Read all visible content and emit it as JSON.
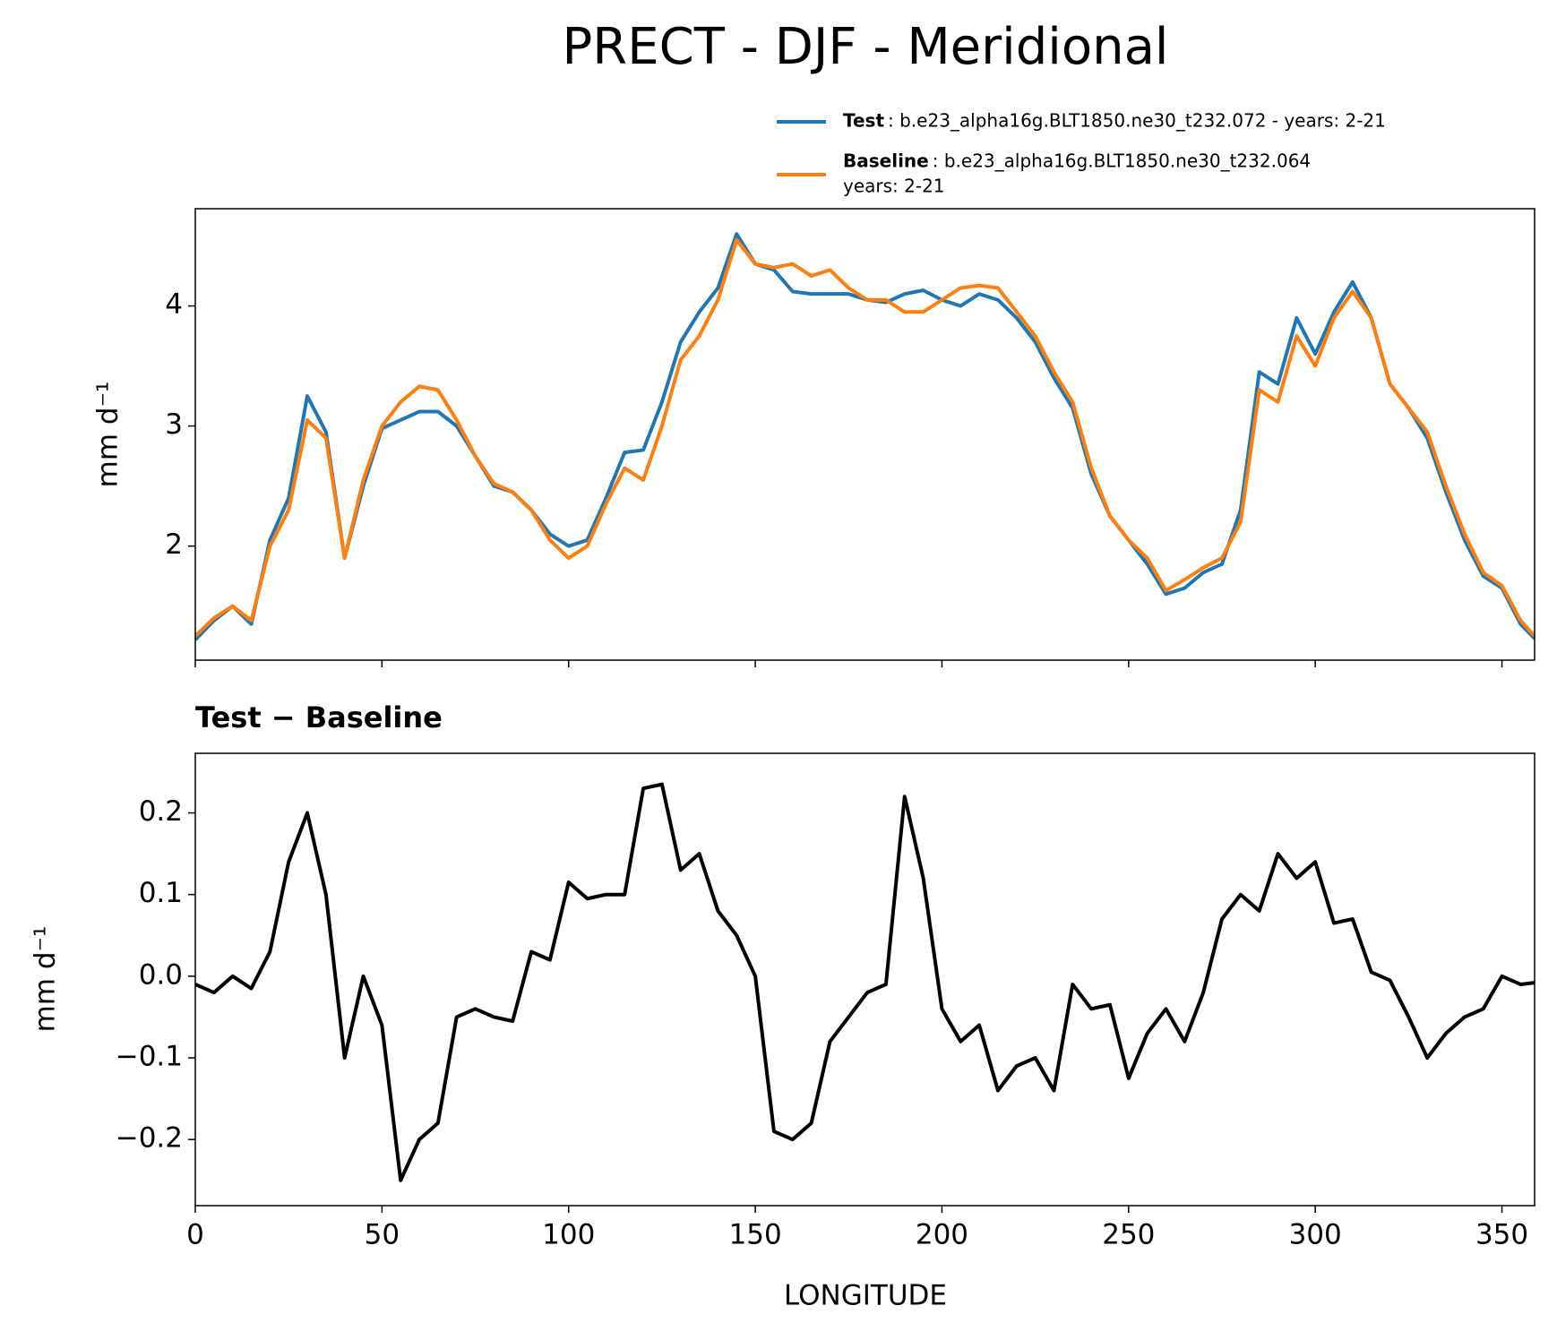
{
  "chart_data": [
    {
      "type": "line",
      "title": "PRECT - DJF - Meridional",
      "ylabel": "mm d⁻¹",
      "x": [
        0,
        5,
        10,
        15,
        20,
        25,
        30,
        35,
        40,
        45,
        50,
        55,
        60,
        65,
        70,
        75,
        80,
        85,
        90,
        95,
        100,
        105,
        110,
        115,
        120,
        125,
        130,
        135,
        140,
        145,
        150,
        155,
        160,
        165,
        170,
        175,
        180,
        185,
        190,
        195,
        200,
        205,
        210,
        215,
        220,
        225,
        230,
        235,
        240,
        245,
        250,
        255,
        260,
        265,
        270,
        275,
        280,
        285,
        290,
        295,
        300,
        305,
        310,
        315,
        320,
        325,
        330,
        335,
        340,
        345,
        350,
        355,
        358.75
      ],
      "series": [
        {
          "name": "Test",
          "description": [
            ": b.e23_alpha16g.BLT1850.ne30_t232.072 - years: 2-21"
          ],
          "color": "#1f77b4",
          "values": [
            1.22,
            1.38,
            1.5,
            1.35,
            2.05,
            2.4,
            3.25,
            2.95,
            1.9,
            2.5,
            2.98,
            3.05,
            3.12,
            3.12,
            3.0,
            2.75,
            2.5,
            2.45,
            2.3,
            2.1,
            2.0,
            2.05,
            2.4,
            2.78,
            2.8,
            3.2,
            3.7,
            3.95,
            4.15,
            4.6,
            4.35,
            4.3,
            4.12,
            4.1,
            4.1,
            4.1,
            4.05,
            4.03,
            4.1,
            4.13,
            4.05,
            4.0,
            4.1,
            4.05,
            3.9,
            3.7,
            3.4,
            3.15,
            2.6,
            2.25,
            2.05,
            1.85,
            1.6,
            1.65,
            1.78,
            1.85,
            2.3,
            3.45,
            3.35,
            3.9,
            3.6,
            3.95,
            4.2,
            3.9,
            3.35,
            3.15,
            2.9,
            2.45,
            2.05,
            1.75,
            1.65,
            1.35,
            1.23
          ]
        },
        {
          "name": "Baseline",
          "description": [
            ": b.e23_alpha16g.BLT1850.ne30_t232.064",
            "years: 2-21"
          ],
          "color": "#ff7f0e",
          "values": [
            1.25,
            1.4,
            1.5,
            1.38,
            2.0,
            2.3,
            3.05,
            2.9,
            1.9,
            2.55,
            3.0,
            3.2,
            3.33,
            3.3,
            3.05,
            2.75,
            2.52,
            2.45,
            2.3,
            2.05,
            1.9,
            2.0,
            2.35,
            2.65,
            2.55,
            3.0,
            3.55,
            3.75,
            4.05,
            4.55,
            4.35,
            4.32,
            4.35,
            4.25,
            4.3,
            4.15,
            4.05,
            4.05,
            3.95,
            3.95,
            4.05,
            4.15,
            4.17,
            4.15,
            3.95,
            3.75,
            3.45,
            3.2,
            2.65,
            2.25,
            2.05,
            1.9,
            1.63,
            1.72,
            1.82,
            1.9,
            2.2,
            3.3,
            3.2,
            3.75,
            3.5,
            3.9,
            4.12,
            3.9,
            3.35,
            3.15,
            2.95,
            2.5,
            2.1,
            1.78,
            1.67,
            1.38,
            1.25
          ]
        }
      ],
      "xlim": [
        0,
        358.75
      ],
      "ylim": [
        1.05,
        4.81
      ],
      "yticks": [
        2,
        3,
        4
      ]
    },
    {
      "type": "line",
      "title": "Test − Baseline",
      "xlabel": "LONGITUDE",
      "ylabel": "mm d⁻¹",
      "x": [
        0,
        5,
        10,
        15,
        20,
        25,
        30,
        35,
        40,
        45,
        50,
        55,
        60,
        65,
        70,
        75,
        80,
        85,
        90,
        95,
        100,
        105,
        110,
        115,
        120,
        125,
        130,
        135,
        140,
        145,
        150,
        155,
        160,
        165,
        170,
        175,
        180,
        185,
        190,
        195,
        200,
        205,
        210,
        215,
        220,
        225,
        230,
        235,
        240,
        245,
        250,
        255,
        260,
        265,
        270,
        275,
        280,
        285,
        290,
        295,
        300,
        305,
        310,
        315,
        320,
        325,
        330,
        335,
        340,
        345,
        350,
        355,
        358.75
      ],
      "series": [
        {
          "color": "#000000",
          "values": [
            -0.01,
            -0.02,
            0.0,
            -0.015,
            0.03,
            0.14,
            0.2,
            0.1,
            -0.1,
            0.0,
            -0.06,
            -0.25,
            -0.2,
            -0.18,
            -0.05,
            -0.04,
            -0.05,
            -0.055,
            0.03,
            0.02,
            0.115,
            0.095,
            0.1,
            0.1,
            0.23,
            0.235,
            0.13,
            0.15,
            0.08,
            0.05,
            0.0,
            -0.19,
            -0.2,
            -0.18,
            -0.08,
            -0.05,
            -0.02,
            -0.01,
            0.22,
            0.12,
            -0.04,
            -0.08,
            -0.06,
            -0.14,
            -0.11,
            -0.1,
            -0.14,
            -0.01,
            -0.04,
            -0.035,
            -0.125,
            -0.07,
            -0.04,
            -0.08,
            -0.02,
            0.07,
            0.1,
            0.08,
            0.15,
            0.12,
            0.14,
            0.065,
            0.07,
            0.005,
            -0.005,
            -0.05,
            -0.1,
            -0.07,
            -0.05,
            -0.04,
            -0.0,
            -0.01,
            -0.008
          ]
        }
      ],
      "xlim": [
        0,
        358.75
      ],
      "ylim": [
        -0.281,
        0.273
      ],
      "xticks": [
        0,
        50,
        100,
        150,
        200,
        250,
        300,
        350
      ],
      "yticks": [
        {
          "value": -0.2,
          "label": "−0.2"
        },
        {
          "value": -0.1,
          "label": "−0.1"
        },
        {
          "value": 0.0,
          "label": "0.0"
        },
        0.1,
        0.2
      ]
    }
  ]
}
